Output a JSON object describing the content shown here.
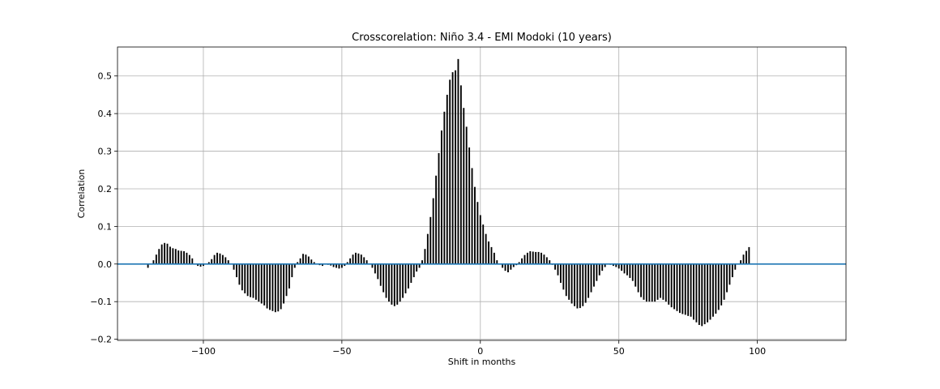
{
  "chart_data": {
    "type": "bar",
    "title": "Crosscorelation: Niño 3.4 - EMI Modoki (10 years)",
    "xlabel": "Shift in months",
    "ylabel": "Correlation",
    "xlim": [
      -131,
      132
    ],
    "ylim": [
      -0.203,
      0.577
    ],
    "xticks": [
      -100,
      -50,
      0,
      50,
      100
    ],
    "xtick_labels": [
      "−100",
      "−50",
      "0",
      "50",
      "100"
    ],
    "yticks": [
      -0.2,
      -0.1,
      0.0,
      0.1,
      0.2,
      0.3,
      0.4,
      0.5
    ],
    "ytick_labels": [
      "−0.2",
      "−0.1",
      "0.0",
      "0.1",
      "0.2",
      "0.3",
      "0.4",
      "0.5"
    ],
    "grid": true,
    "zero_line_color": "#1f77b4",
    "bar_color": "#000000",
    "x_start": -120,
    "x_step": 1,
    "values": [
      -0.01,
      0.0,
      0.01,
      0.025,
      0.04,
      0.052,
      0.056,
      0.054,
      0.046,
      0.042,
      0.04,
      0.036,
      0.035,
      0.034,
      0.03,
      0.024,
      0.015,
      0.0,
      -0.005,
      -0.007,
      -0.005,
      0.0,
      0.005,
      0.013,
      0.024,
      0.03,
      0.028,
      0.024,
      0.018,
      0.01,
      0.0,
      -0.015,
      -0.035,
      -0.055,
      -0.07,
      -0.078,
      -0.085,
      -0.088,
      -0.09,
      -0.095,
      -0.1,
      -0.105,
      -0.11,
      -0.118,
      -0.122,
      -0.125,
      -0.128,
      -0.126,
      -0.12,
      -0.105,
      -0.085,
      -0.065,
      -0.035,
      -0.01,
      0.005,
      0.015,
      0.027,
      0.025,
      0.02,
      0.012,
      0.005,
      0.0,
      -0.003,
      -0.005,
      0.0,
      -0.002,
      -0.004,
      -0.008,
      -0.01,
      -0.012,
      -0.01,
      -0.005,
      0.005,
      0.015,
      0.025,
      0.03,
      0.028,
      0.025,
      0.018,
      0.01,
      0.0,
      -0.01,
      -0.025,
      -0.04,
      -0.058,
      -0.075,
      -0.09,
      -0.1,
      -0.108,
      -0.112,
      -0.108,
      -0.1,
      -0.09,
      -0.078,
      -0.065,
      -0.05,
      -0.035,
      -0.02,
      -0.01,
      0.01,
      0.04,
      0.08,
      0.125,
      0.175,
      0.235,
      0.295,
      0.355,
      0.405,
      0.45,
      0.49,
      0.51,
      0.515,
      0.545,
      0.475,
      0.415,
      0.365,
      0.31,
      0.255,
      0.205,
      0.165,
      0.13,
      0.105,
      0.08,
      0.06,
      0.045,
      0.03,
      0.01,
      0.0,
      -0.01,
      -0.018,
      -0.022,
      -0.015,
      -0.008,
      -0.003,
      0.005,
      0.015,
      0.024,
      0.03,
      0.034,
      0.033,
      0.032,
      0.032,
      0.03,
      0.025,
      0.018,
      0.01,
      -0.002,
      -0.015,
      -0.03,
      -0.05,
      -0.068,
      -0.085,
      -0.095,
      -0.105,
      -0.112,
      -0.118,
      -0.117,
      -0.112,
      -0.103,
      -0.09,
      -0.075,
      -0.06,
      -0.045,
      -0.03,
      -0.018,
      -0.008,
      0.0,
      -0.002,
      -0.005,
      -0.008,
      -0.012,
      -0.018,
      -0.025,
      -0.03,
      -0.037,
      -0.045,
      -0.06,
      -0.075,
      -0.088,
      -0.095,
      -0.1,
      -0.1,
      -0.1,
      -0.1,
      -0.095,
      -0.09,
      -0.095,
      -0.1,
      -0.108,
      -0.115,
      -0.12,
      -0.125,
      -0.13,
      -0.133,
      -0.135,
      -0.138,
      -0.14,
      -0.148,
      -0.155,
      -0.162,
      -0.165,
      -0.16,
      -0.155,
      -0.148,
      -0.14,
      -0.132,
      -0.122,
      -0.11,
      -0.095,
      -0.075,
      -0.055,
      -0.035,
      -0.015,
      0.0,
      0.01,
      0.025,
      0.035,
      0.045
    ]
  }
}
